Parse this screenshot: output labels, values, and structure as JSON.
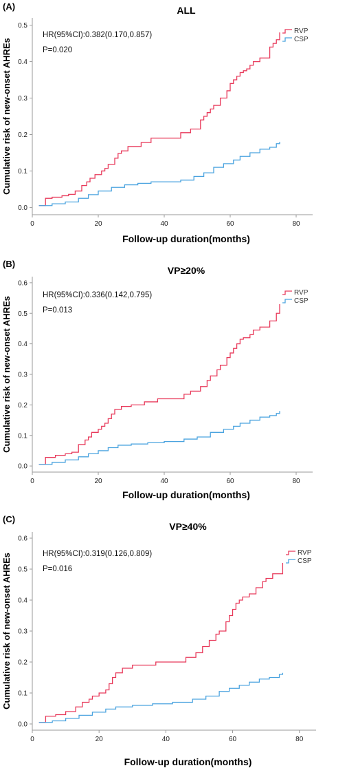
{
  "colors": {
    "rvp": "#e8395a",
    "csp": "#4aa3df"
  },
  "chart_data": [
    {
      "type": "line",
      "panel_label": "(A)",
      "title": "ALL",
      "xlabel": "Follow-up duration(months)",
      "ylabel": "Cumulative risk of new-onset AHREs",
      "xlim": [
        0,
        85
      ],
      "ylim": [
        -0.02,
        0.52
      ],
      "xticks": [
        0,
        20,
        40,
        60,
        80
      ],
      "yticks": [
        0.0,
        0.1,
        0.2,
        0.3,
        0.4,
        0.5
      ],
      "annotations": [
        "HR(95%CI):0.382(0.170,0.857)",
        "P=0.020"
      ],
      "legend_position": "top-right",
      "series": [
        {
          "name": "RVP",
          "color": "#e8395a",
          "step": true,
          "x": [
            2,
            4,
            6,
            9,
            11,
            13,
            15,
            16.5,
            17.5,
            19,
            21,
            22,
            23,
            25,
            26,
            27,
            29,
            33,
            36,
            45,
            48,
            51,
            52,
            53,
            54,
            55,
            57,
            59,
            60,
            61,
            62,
            63,
            64,
            65,
            66,
            67,
            69,
            72,
            73,
            74,
            75
          ],
          "y": [
            0.005,
            0.025,
            0.028,
            0.032,
            0.036,
            0.045,
            0.06,
            0.07,
            0.08,
            0.09,
            0.1,
            0.107,
            0.118,
            0.135,
            0.148,
            0.155,
            0.167,
            0.178,
            0.19,
            0.205,
            0.215,
            0.24,
            0.25,
            0.26,
            0.27,
            0.28,
            0.3,
            0.32,
            0.34,
            0.35,
            0.36,
            0.37,
            0.375,
            0.38,
            0.39,
            0.4,
            0.41,
            0.44,
            0.45,
            0.46,
            0.48
          ]
        },
        {
          "name": "CSP",
          "color": "#4aa3df",
          "step": true,
          "x": [
            2,
            6,
            10,
            14,
            17,
            20,
            24,
            28,
            32,
            36,
            45,
            49,
            52,
            55,
            58,
            61,
            63,
            66,
            69,
            72,
            74,
            75
          ],
          "y": [
            0.005,
            0.01,
            0.015,
            0.025,
            0.035,
            0.045,
            0.055,
            0.062,
            0.066,
            0.07,
            0.075,
            0.085,
            0.095,
            0.11,
            0.12,
            0.13,
            0.14,
            0.15,
            0.16,
            0.165,
            0.175,
            0.18
          ]
        }
      ]
    },
    {
      "type": "line",
      "panel_label": "(B)",
      "title": "VP≥20%",
      "xlabel": "Follow-up duration(months)",
      "ylabel": "Cumulative risk of new-onset AHREs",
      "xlim": [
        0,
        85
      ],
      "ylim": [
        -0.02,
        0.62
      ],
      "xticks": [
        0,
        20,
        40,
        60,
        80
      ],
      "yticks": [
        0.0,
        0.1,
        0.2,
        0.3,
        0.4,
        0.5,
        0.6
      ],
      "annotations": [
        "HR(95%CI):0.336(0.142,0.795)",
        "P=0.013"
      ],
      "legend_position": "top-right",
      "series": [
        {
          "name": "RVP",
          "color": "#e8395a",
          "step": true,
          "x": [
            2,
            4,
            7,
            10,
            12,
            14,
            16,
            17,
            18,
            20,
            21,
            22,
            23,
            24,
            25,
            27,
            30,
            34,
            38,
            46,
            48,
            51,
            53,
            54,
            56,
            57,
            59,
            60,
            61,
            62,
            63,
            64,
            66,
            67,
            69,
            72,
            74,
            75
          ],
          "y": [
            0.005,
            0.028,
            0.035,
            0.04,
            0.045,
            0.07,
            0.085,
            0.095,
            0.11,
            0.12,
            0.13,
            0.14,
            0.155,
            0.17,
            0.185,
            0.195,
            0.2,
            0.21,
            0.22,
            0.235,
            0.245,
            0.26,
            0.28,
            0.295,
            0.315,
            0.33,
            0.355,
            0.37,
            0.385,
            0.4,
            0.415,
            0.42,
            0.43,
            0.445,
            0.455,
            0.475,
            0.5,
            0.53
          ]
        },
        {
          "name": "CSP",
          "color": "#4aa3df",
          "step": true,
          "x": [
            2,
            6,
            10,
            14,
            17,
            20,
            23,
            26,
            30,
            35,
            40,
            46,
            50,
            54,
            58,
            61,
            63,
            66,
            69,
            72,
            74,
            75
          ],
          "y": [
            0.005,
            0.012,
            0.02,
            0.03,
            0.04,
            0.05,
            0.06,
            0.068,
            0.072,
            0.076,
            0.08,
            0.088,
            0.095,
            0.11,
            0.12,
            0.13,
            0.14,
            0.15,
            0.16,
            0.165,
            0.172,
            0.18
          ]
        }
      ]
    },
    {
      "type": "line",
      "panel_label": "(C)",
      "title": "VP≥40%",
      "xlabel": "Follow-up duration(months)",
      "ylabel": "Cumulative risk of new-onset AHREs",
      "xlim": [
        0,
        85
      ],
      "ylim": [
        -0.02,
        0.62
      ],
      "xticks": [
        0,
        20,
        40,
        60,
        80
      ],
      "yticks": [
        0.0,
        0.1,
        0.2,
        0.3,
        0.4,
        0.5,
        0.6
      ],
      "annotations": [
        "HR(95%CI):0.319(0.126,0.809)",
        "P=0.016"
      ],
      "legend_position": "top-right",
      "series": [
        {
          "name": "RVP",
          "color": "#e8395a",
          "step": true,
          "x": [
            2,
            4,
            7,
            10,
            13,
            15,
            17,
            18,
            20,
            22,
            23,
            24,
            25,
            27,
            30,
            37,
            46,
            49,
            51,
            53,
            55,
            56,
            58,
            59,
            60,
            61,
            62,
            63,
            65,
            67,
            69,
            70,
            72,
            75
          ],
          "y": [
            0.005,
            0.025,
            0.03,
            0.04,
            0.055,
            0.07,
            0.08,
            0.09,
            0.1,
            0.11,
            0.13,
            0.15,
            0.165,
            0.18,
            0.19,
            0.2,
            0.215,
            0.23,
            0.25,
            0.27,
            0.29,
            0.3,
            0.33,
            0.35,
            0.37,
            0.39,
            0.4,
            0.41,
            0.42,
            0.44,
            0.46,
            0.47,
            0.485,
            0.52
          ]
        },
        {
          "name": "CSP",
          "color": "#4aa3df",
          "step": true,
          "x": [
            2,
            6,
            10,
            14,
            18,
            22,
            25,
            30,
            36,
            42,
            48,
            52,
            56,
            59,
            62,
            65,
            68,
            71,
            74,
            75
          ],
          "y": [
            0.005,
            0.01,
            0.018,
            0.028,
            0.038,
            0.048,
            0.055,
            0.06,
            0.065,
            0.07,
            0.08,
            0.09,
            0.105,
            0.115,
            0.125,
            0.135,
            0.145,
            0.15,
            0.16,
            0.165
          ]
        }
      ]
    }
  ]
}
